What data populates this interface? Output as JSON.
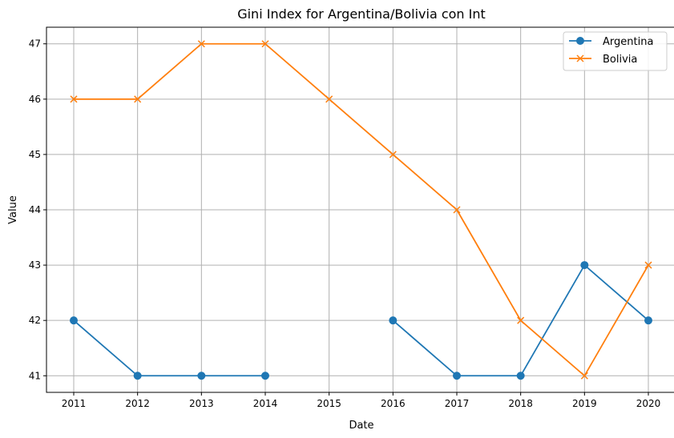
{
  "chart_data": {
    "type": "line",
    "title": "Gini Index for Argentina/Bolivia con Int",
    "xlabel": "Date",
    "ylabel": "Value",
    "x": [
      "2011",
      "2012",
      "2013",
      "2014",
      "2015",
      "2016",
      "2017",
      "2018",
      "2019",
      "2020"
    ],
    "ylim": [
      40.7,
      47.3
    ],
    "yticks": [
      41,
      42,
      43,
      44,
      45,
      46,
      47
    ],
    "grid": true,
    "legend_position": "top-right",
    "series": [
      {
        "name": "Argentina",
        "color": "#1f77b4",
        "marker": "circle",
        "segments": [
          [
            [
              "2011",
              42
            ],
            [
              "2012",
              41
            ],
            [
              "2013",
              41
            ],
            [
              "2014",
              41
            ]
          ],
          [
            [
              "2016",
              42
            ],
            [
              "2017",
              41
            ],
            [
              "2018",
              41
            ],
            [
              "2019",
              43
            ],
            [
              "2020",
              42
            ]
          ]
        ]
      },
      {
        "name": "Bolivia",
        "color": "#ff7f0e",
        "marker": "x",
        "segments": [
          [
            [
              "2011",
              46
            ],
            [
              "2012",
              46
            ],
            [
              "2013",
              47
            ],
            [
              "2014",
              47
            ],
            [
              "2015",
              46
            ],
            [
              "2016",
              45
            ],
            [
              "2017",
              44
            ],
            [
              "2018",
              42
            ],
            [
              "2019",
              41
            ],
            [
              "2020",
              43
            ]
          ]
        ]
      }
    ]
  }
}
